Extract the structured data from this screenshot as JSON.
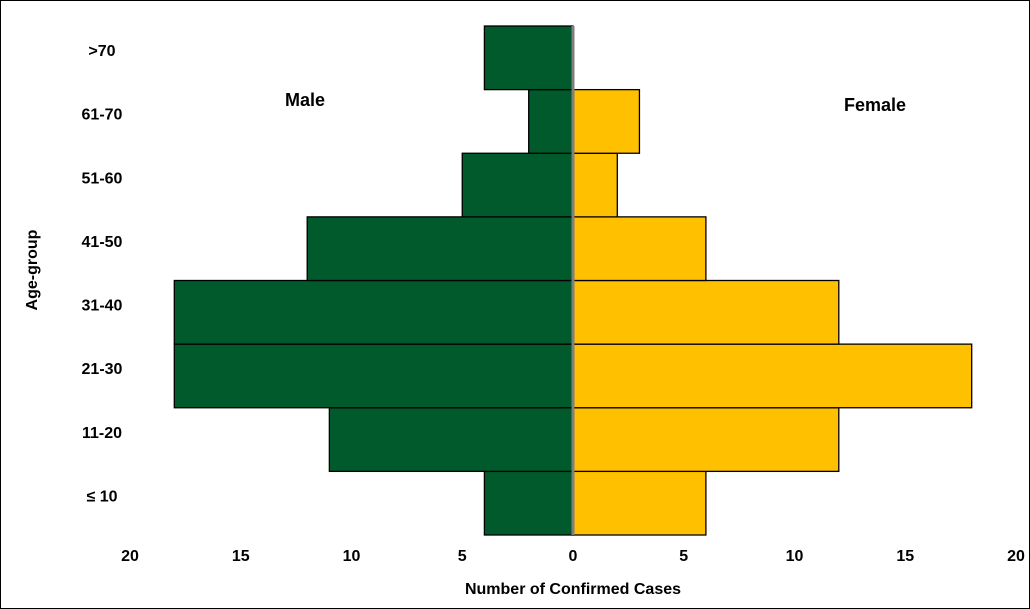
{
  "chart_data": {
    "type": "pyramid",
    "x_label": "Number of Confirmed Cases",
    "y_label": "Age-group",
    "categories": [
      "≤ 10",
      "11-20",
      "21-30",
      "31-40",
      "41-50",
      "51-60",
      "61-70",
      ">70"
    ],
    "series": [
      {
        "name": "Male",
        "color": "#005a2b",
        "values": [
          -4,
          -11,
          -18,
          -18,
          -12,
          -5,
          -2,
          -4
        ]
      },
      {
        "name": "Female",
        "color": "#ffc000",
        "values": [
          6,
          12,
          18,
          12,
          6,
          2,
          3,
          0
        ]
      }
    ],
    "xlim": [
      -20,
      20
    ],
    "xticks": [
      {
        "value": -20,
        "label": "20"
      },
      {
        "value": -15,
        "label": "15"
      },
      {
        "value": -10,
        "label": "10"
      },
      {
        "value": -5,
        "label": "5"
      },
      0,
      5,
      10,
      15,
      20
    ]
  }
}
